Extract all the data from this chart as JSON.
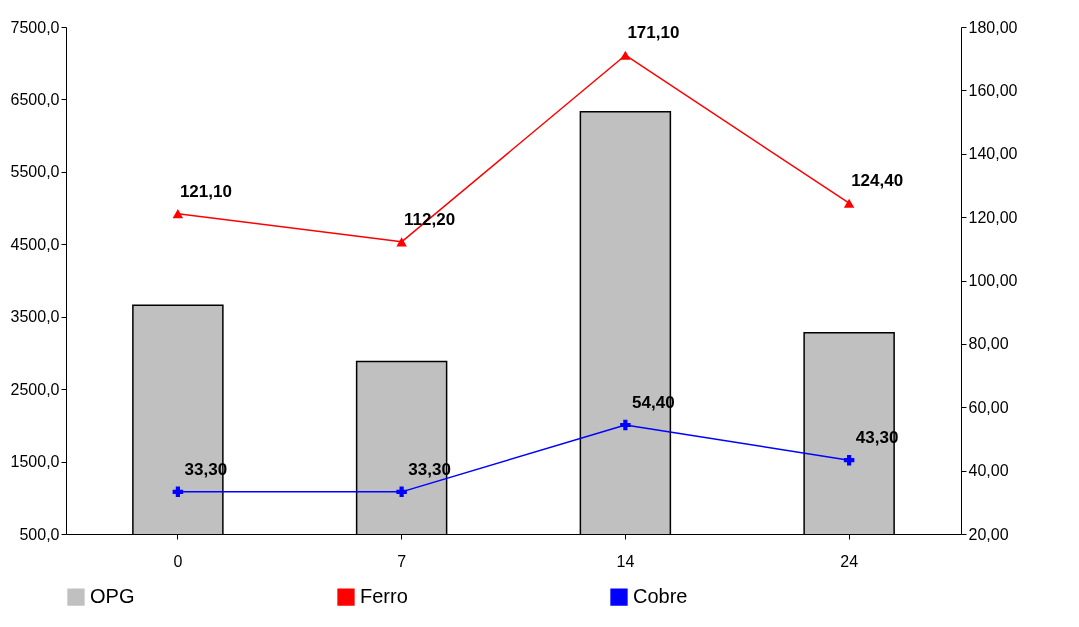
{
  "chart_data": {
    "type": "bar",
    "categories": [
      "0",
      "7",
      "14",
      "24"
    ],
    "series": [
      {
        "name": "OPG",
        "color": "#c0c0c0",
        "values": [
          3660,
          2880,
          6330,
          3280
        ]
      },
      {
        "name": "Ferro",
        "type": "line",
        "axis": "y2",
        "marker": "triangle",
        "color": "#ff0000",
        "values": [
          121.1,
          112.2,
          171.1,
          124.4
        ],
        "value_labels": [
          "121,10",
          "112,20",
          "171,10",
          "124,40"
        ]
      },
      {
        "name": "Cobre",
        "type": "line",
        "axis": "y2",
        "marker": "cross",
        "color": "#0000ff",
        "values": [
          33.3,
          33.3,
          54.4,
          43.3
        ],
        "value_labels": [
          "33,30",
          "33,30",
          "54,40",
          "43,30"
        ]
      }
    ],
    "ylim": [
      500,
      7500
    ],
    "yticks": [
      {
        "value": 500,
        "label": "500,0"
      },
      {
        "value": 1500,
        "label": "1500,0"
      },
      {
        "value": 2500,
        "label": "2500,0"
      },
      {
        "value": 3500,
        "label": "3500,0"
      },
      {
        "value": 4500,
        "label": "4500,0"
      },
      {
        "value": 5500,
        "label": "5500,0"
      },
      {
        "value": 6500,
        "label": "6500,0"
      },
      {
        "value": 7500,
        "label": "7500,0"
      }
    ],
    "y2lim": [
      20,
      180
    ],
    "y2ticks": [
      {
        "value": 20,
        "label": "20,00"
      },
      {
        "value": 40,
        "label": "40,00"
      },
      {
        "value": 60,
        "label": "60,00"
      },
      {
        "value": 80,
        "label": "80,00"
      },
      {
        "value": 100,
        "label": "100,00"
      },
      {
        "value": 120,
        "label": "120,00"
      },
      {
        "value": 140,
        "label": "140,00"
      },
      {
        "value": 160,
        "label": "160,00"
      },
      {
        "value": 180,
        "label": "180,00"
      }
    ],
    "grid": false,
    "legend": "bottom"
  }
}
